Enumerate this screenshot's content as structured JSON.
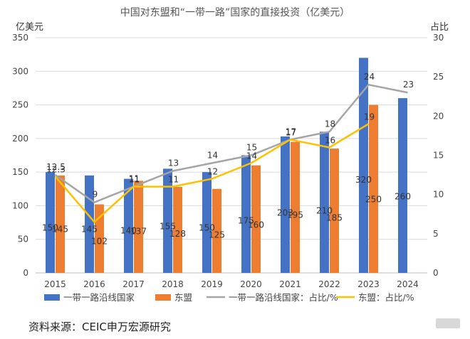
{
  "chart_data": {
    "type": "bar",
    "title": "中国对东盟和“一带一路”国家的直接投资（亿美元）",
    "ylabel_left": "亿美元",
    "ylabel_right": "占比",
    "categories": [
      "2015",
      "2016",
      "2017",
      "2018",
      "2019",
      "2020",
      "2021",
      "2022",
      "2023",
      "2024"
    ],
    "ylim_left": [
      0,
      350
    ],
    "yticks_left": [
      0,
      50,
      100,
      150,
      200,
      250,
      300,
      350
    ],
    "ylim_right": [
      0,
      30
    ],
    "yticks_right": [
      0,
      5,
      10,
      15,
      20,
      25,
      30
    ],
    "bar_series": [
      {
        "name": "一带一路沿线国家",
        "color": "#4472C4",
        "values": [
          150,
          145,
          140,
          155,
          150,
          175,
          203,
          210,
          320,
          260
        ],
        "labels": [
          "150",
          "145",
          "140",
          "155",
          "150",
          "175",
          "203",
          "210",
          "320",
          "260"
        ]
      },
      {
        "name": "东盟",
        "color": "#ED7D31",
        "values": [
          145,
          102,
          137,
          128,
          125,
          160,
          195,
          185,
          250,
          null
        ],
        "labels": [
          "145",
          "102",
          "137",
          "128",
          "125",
          "160",
          "195",
          "185",
          "250",
          ""
        ]
      }
    ],
    "line_series": [
      {
        "name": "一带一路沿线国家：占比/%",
        "color": "#A5A5A5",
        "values": [
          12.5,
          9,
          11,
          13,
          14,
          15,
          17,
          18,
          24,
          23
        ],
        "labels": [
          "12.5",
          "9",
          "11",
          "13",
          "14",
          "15",
          "17",
          "18",
          "24",
          "23"
        ]
      },
      {
        "name": "东盟：占比/%",
        "color": "#FFC000",
        "values": [
          12.3,
          6.5,
          11,
          11,
          12,
          14,
          17,
          16,
          19,
          null
        ],
        "labels": [
          "12.3",
          "",
          "11",
          "11",
          "12",
          "14",
          "17",
          "16",
          "19",
          ""
        ]
      }
    ],
    "legend_position": "bottom",
    "grid": true
  },
  "source": "资料来源：CEIC申万宏源研究"
}
